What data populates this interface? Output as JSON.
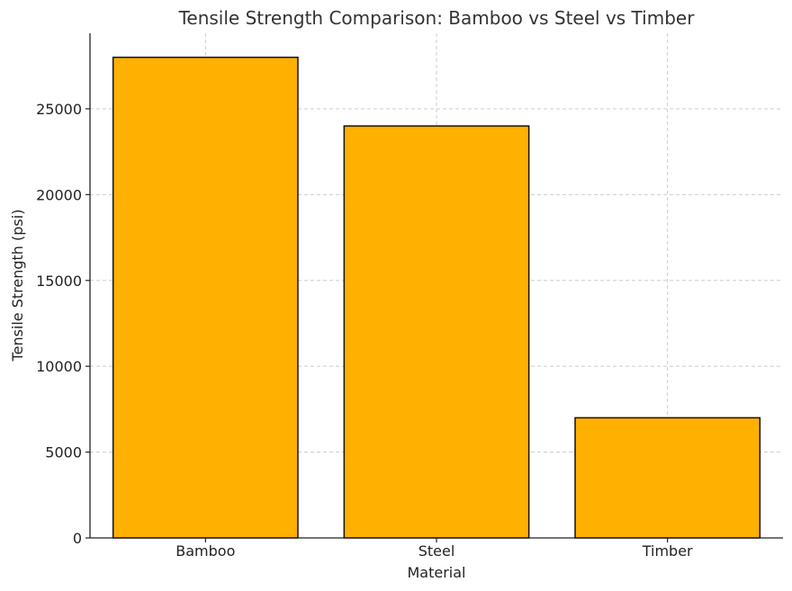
{
  "chart_data": {
    "type": "bar",
    "title": "Tensile Strength Comparison: Bamboo vs Steel vs Timber",
    "xlabel": "Material",
    "ylabel": "Tensile Strength (psi)",
    "categories": [
      "Bamboo",
      "Steel",
      "Timber"
    ],
    "values": [
      28000,
      24000,
      7000
    ],
    "ylim": [
      0,
      29400
    ],
    "yticks": [
      0,
      5000,
      10000,
      15000,
      20000,
      25000
    ],
    "grid": true,
    "bar_color": "#FFB000",
    "bar_edge_color": "#111111"
  }
}
